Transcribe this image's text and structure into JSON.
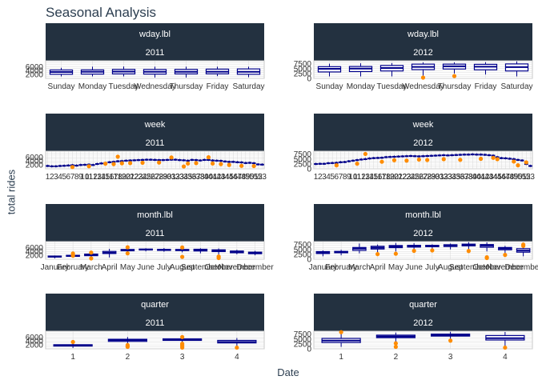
{
  "title": "Seasonal Analysis",
  "ylabel": "total rides",
  "xlabel": "Date",
  "colors": {
    "strip": "#233140",
    "box": "#00008b",
    "outlier": "#ff8c00",
    "grid": "#d9d9d9",
    "panel_border": "#c8c8c8"
  },
  "chart_data": [
    {
      "type": "boxplot",
      "feature": "wday.lbl",
      "year": "2011",
      "ylim": [
        0,
        9000
      ],
      "yticks": [
        2000,
        4000,
        6000
      ],
      "categories": [
        "Sunday",
        "Monday",
        "Tuesday",
        "Wednesday",
        "Thursday",
        "Friday",
        "Saturday"
      ],
      "boxes": [
        {
          "min": 1000,
          "q1": 2100,
          "median": 3250,
          "q3": 4300,
          "max": 5400
        },
        {
          "min": 1000,
          "q1": 2200,
          "median": 3400,
          "q3": 4350,
          "max": 6000
        },
        {
          "min": 1000,
          "q1": 2300,
          "median": 3500,
          "q3": 4600,
          "max": 6100
        },
        {
          "min": 450,
          "q1": 2200,
          "median": 3400,
          "q3": 4550,
          "max": 6000
        },
        {
          "min": 450,
          "q1": 2300,
          "median": 3400,
          "q3": 4600,
          "max": 6000
        },
        {
          "min": 1200,
          "q1": 2350,
          "median": 3450,
          "q3": 4750,
          "max": 6000
        },
        {
          "min": 600,
          "q1": 2100,
          "median": 3350,
          "q3": 4850,
          "max": 6000
        }
      ],
      "outliers": []
    },
    {
      "type": "boxplot",
      "feature": "wday.lbl",
      "year": "2012",
      "ylim": [
        0,
        9000
      ],
      "yticks": [
        0,
        2500,
        5000,
        7500
      ],
      "categories": [
        "Sunday",
        "Monday",
        "Tuesday",
        "Wednesday",
        "Thursday",
        "Friday",
        "Saturday"
      ],
      "boxes": [
        {
          "min": 1000,
          "q1": 3300,
          "median": 4900,
          "q3": 6000,
          "max": 7500
        },
        {
          "min": 1000,
          "q1": 3500,
          "median": 5000,
          "q3": 6100,
          "max": 7700
        },
        {
          "min": 1000,
          "q1": 3800,
          "median": 5300,
          "q3": 6600,
          "max": 7800
        },
        {
          "min": 1500,
          "q1": 4500,
          "median": 5900,
          "q3": 7300,
          "max": 8200
        },
        {
          "min": 2500,
          "q1": 4800,
          "median": 6200,
          "q3": 7300,
          "max": 8200
        },
        {
          "min": 2000,
          "q1": 4400,
          "median": 6000,
          "q3": 7200,
          "max": 8300
        },
        {
          "min": 1000,
          "q1": 3800,
          "median": 5800,
          "q3": 7400,
          "max": 8700
        }
      ],
      "outliers": [
        {
          "cat": 3,
          "y": 400
        },
        {
          "cat": 4,
          "y": 1200
        }
      ]
    },
    {
      "type": "boxplot",
      "feature": "week",
      "year": "2011",
      "ylim": [
        0,
        9000
      ],
      "yticks": [
        2000,
        4000,
        6000
      ],
      "categories": [
        "1",
        "2",
        "3",
        "4",
        "5",
        "6",
        "7",
        "8",
        "9",
        "10",
        "11",
        "12",
        "13",
        "14",
        "15",
        "16",
        "17",
        "18",
        "19",
        "20",
        "21",
        "22",
        "23",
        "24",
        "25",
        "26",
        "27",
        "28",
        "29",
        "30",
        "31",
        "32",
        "33",
        "34",
        "35",
        "36",
        "37",
        "38",
        "39",
        "40",
        "41",
        "42",
        "43",
        "44",
        "45",
        "46",
        "47",
        "48",
        "49",
        "50",
        "51",
        "52",
        "53"
      ],
      "medians": [
        1500,
        1300,
        1300,
        1500,
        1600,
        1750,
        1900,
        1700,
        2000,
        2100,
        2200,
        2000,
        2500,
        2800,
        3000,
        3400,
        3600,
        3900,
        4000,
        4200,
        4300,
        4400,
        4500,
        4600,
        4700,
        4700,
        4600,
        4500,
        4500,
        4600,
        4700,
        4700,
        4500,
        4400,
        4200,
        4600,
        4500,
        4300,
        4600,
        4600,
        4300,
        4200,
        4100,
        3800,
        3600,
        3600,
        3400,
        3300,
        3000,
        3100,
        2900,
        2300,
        2200
      ],
      "outliers": [
        {
          "cat": 6,
          "y": 900
        },
        {
          "cat": 10,
          "y": 1300
        },
        {
          "cat": 14,
          "y": 2600
        },
        {
          "cat": 16,
          "y": 2400
        },
        {
          "cat": 17,
          "y": 6200
        },
        {
          "cat": 18,
          "y": 2800
        },
        {
          "cat": 20,
          "y": 2900
        },
        {
          "cat": 23,
          "y": 3100
        },
        {
          "cat": 27,
          "y": 3200
        },
        {
          "cat": 30,
          "y": 5800
        },
        {
          "cat": 33,
          "y": 1200
        },
        {
          "cat": 34,
          "y": 2700
        },
        {
          "cat": 36,
          "y": 2900
        },
        {
          "cat": 39,
          "y": 5900
        },
        {
          "cat": 40,
          "y": 2700
        },
        {
          "cat": 42,
          "y": 2400
        },
        {
          "cat": 44,
          "y": 2000
        },
        {
          "cat": 47,
          "y": 1500
        },
        {
          "cat": 50,
          "y": 1400
        }
      ]
    },
    {
      "type": "boxplot",
      "feature": "week",
      "year": "2012",
      "ylim": [
        0,
        9000
      ],
      "yticks": [
        0,
        2500,
        5000,
        7500
      ],
      "categories": [
        "1",
        "2",
        "3",
        "4",
        "5",
        "6",
        "7",
        "8",
        "9",
        "10",
        "11",
        "12",
        "13",
        "14",
        "15",
        "16",
        "17",
        "18",
        "19",
        "20",
        "21",
        "22",
        "23",
        "24",
        "25",
        "26",
        "27",
        "28",
        "29",
        "30",
        "31",
        "32",
        "33",
        "34",
        "35",
        "36",
        "37",
        "38",
        "39",
        "40",
        "41",
        "42",
        "43",
        "44",
        "45",
        "46",
        "47",
        "48",
        "49",
        "50",
        "51",
        "52",
        "53"
      ],
      "medians": [
        2500,
        2600,
        2600,
        2900,
        3000,
        3100,
        3400,
        3500,
        3900,
        4200,
        4500,
        4800,
        5000,
        5300,
        5500,
        5600,
        5700,
        6000,
        6100,
        6200,
        6300,
        6400,
        6500,
        6600,
        6500,
        6400,
        6500,
        6600,
        6700,
        6800,
        6900,
        7000,
        6900,
        7000,
        7100,
        7200,
        7300,
        7300,
        7400,
        7300,
        7300,
        7200,
        7000,
        6800,
        6000,
        5500,
        5400,
        5200,
        5000,
        4600,
        4300,
        2500,
        1500
      ],
      "outliers": [
        {
          "cat": 5,
          "y": 1800
        },
        {
          "cat": 10,
          "y": 2600
        },
        {
          "cat": 12,
          "y": 7600
        },
        {
          "cat": 16,
          "y": 3600
        },
        {
          "cat": 19,
          "y": 4400
        },
        {
          "cat": 22,
          "y": 4200
        },
        {
          "cat": 25,
          "y": 4700
        },
        {
          "cat": 27,
          "y": 4500
        },
        {
          "cat": 31,
          "y": 4900
        },
        {
          "cat": 35,
          "y": 4600
        },
        {
          "cat": 40,
          "y": 5100
        },
        {
          "cat": 43,
          "y": 5600
        },
        {
          "cat": 44,
          "y": 4900
        },
        {
          "cat": 48,
          "y": 3700
        },
        {
          "cat": 49,
          "y": 1800
        },
        {
          "cat": 51,
          "y": 3300
        }
      ]
    },
    {
      "type": "boxplot",
      "feature": "month.lbl",
      "year": "2011",
      "ylim": [
        0,
        9000
      ],
      "yticks": [
        2000,
        4000,
        6000
      ],
      "categories": [
        "January",
        "February",
        "March",
        "April",
        "May",
        "June",
        "July",
        "August",
        "September",
        "October",
        "November",
        "December"
      ],
      "boxes": [
        {
          "min": 450,
          "q1": 1100,
          "median": 1300,
          "q3": 1600,
          "max": 1900
        },
        {
          "min": 1000,
          "q1": 1500,
          "median": 1700,
          "q3": 2000,
          "max": 2600
        },
        {
          "min": 600,
          "q1": 1800,
          "median": 2100,
          "q3": 2600,
          "max": 3300
        },
        {
          "min": 900,
          "q1": 2900,
          "median": 3300,
          "q3": 4000,
          "max": 5300
        },
        {
          "min": 3000,
          "q1": 4300,
          "median": 4700,
          "q3": 5000,
          "max": 5800
        },
        {
          "min": 4000,
          "q1": 4700,
          "median": 4900,
          "q3": 5200,
          "max": 5600
        },
        {
          "min": 3800,
          "q1": 4500,
          "median": 4800,
          "q3": 5000,
          "max": 5700
        },
        {
          "min": 3500,
          "q1": 4400,
          "median": 4700,
          "q3": 5000,
          "max": 5800
        },
        {
          "min": 3000,
          "q1": 4200,
          "median": 4700,
          "q3": 5100,
          "max": 5600
        },
        {
          "min": 2500,
          "q1": 3900,
          "median": 4400,
          "q3": 4800,
          "max": 5500
        },
        {
          "min": 2500,
          "q1": 3300,
          "median": 3700,
          "q3": 4200,
          "max": 4800
        },
        {
          "min": 2000,
          "q1": 2800,
          "median": 3200,
          "q3": 3600,
          "max": 4300
        }
      ],
      "outliers": [
        {
          "cat": 1,
          "y": 2900
        },
        {
          "cat": 1,
          "y": 1800
        },
        {
          "cat": 2,
          "y": 3400
        },
        {
          "cat": 2,
          "y": 400
        },
        {
          "cat": 4,
          "y": 6100
        },
        {
          "cat": 4,
          "y": 3000
        },
        {
          "cat": 7,
          "y": 6000
        },
        {
          "cat": 7,
          "y": 1200
        },
        {
          "cat": 9,
          "y": 1400
        },
        {
          "cat": 9,
          "y": 600
        }
      ]
    },
    {
      "type": "boxplot",
      "feature": "month.lbl",
      "year": "2012",
      "ylim": [
        0,
        9000
      ],
      "yticks": [
        0,
        2500,
        5000,
        7500
      ],
      "categories": [
        "January",
        "February",
        "March",
        "April",
        "May",
        "June",
        "July",
        "August",
        "September",
        "October",
        "November",
        "December"
      ],
      "boxes": [
        {
          "min": 1500,
          "q1": 2900,
          "median": 3300,
          "q3": 3900,
          "max": 4500
        },
        {
          "min": 2000,
          "q1": 3300,
          "median": 3700,
          "q3": 4000,
          "max": 4800
        },
        {
          "min": 3000,
          "q1": 4500,
          "median": 5400,
          "q3": 6000,
          "max": 8000
        },
        {
          "min": 3400,
          "q1": 5200,
          "median": 5900,
          "q3": 6600,
          "max": 7500
        },
        {
          "min": 4000,
          "q1": 5900,
          "median": 6400,
          "q3": 7000,
          "max": 8300
        },
        {
          "min": 4500,
          "q1": 6200,
          "median": 6700,
          "q3": 7100,
          "max": 8200
        },
        {
          "min": 4500,
          "q1": 6400,
          "median": 6800,
          "q3": 7100,
          "max": 7600
        },
        {
          "min": 5000,
          "q1": 6500,
          "median": 7000,
          "q3": 7400,
          "max": 8000
        },
        {
          "min": 5000,
          "q1": 6800,
          "median": 7300,
          "q3": 7700,
          "max": 8700
        },
        {
          "min": 4000,
          "q1": 6100,
          "median": 6900,
          "q3": 7500,
          "max": 8600
        },
        {
          "min": 2500,
          "q1": 4800,
          "median": 5500,
          "q3": 6000,
          "max": 6800
        },
        {
          "min": 1500,
          "q1": 3600,
          "median": 4400,
          "q3": 5400,
          "max": 6600
        }
      ],
      "outliers": [
        {
          "cat": 3,
          "y": 2600
        },
        {
          "cat": 4,
          "y": 2800
        },
        {
          "cat": 5,
          "y": 4300
        },
        {
          "cat": 6,
          "y": 4500
        },
        {
          "cat": 8,
          "y": 4200
        },
        {
          "cat": 9,
          "y": 1000
        },
        {
          "cat": 9,
          "y": 600
        },
        {
          "cat": 10,
          "y": 2200
        },
        {
          "cat": 11,
          "y": 7500
        },
        {
          "cat": 11,
          "y": 6800
        }
      ]
    },
    {
      "type": "boxplot",
      "feature": "quarter",
      "year": "2011",
      "ylim": [
        0,
        9000
      ],
      "yticks": [
        2000,
        4000,
        6000
      ],
      "categories": [
        "1",
        "2",
        "3",
        "4"
      ],
      "boxes": [
        {
          "min": 450,
          "q1": 1400,
          "median": 1700,
          "q3": 2100,
          "max": 3000
        },
        {
          "min": 1800,
          "q1": 3800,
          "median": 4400,
          "q3": 4900,
          "max": 6000
        },
        {
          "min": 3000,
          "q1": 4300,
          "median": 4700,
          "q3": 5100,
          "max": 6000
        },
        {
          "min": 700,
          "q1": 3000,
          "median": 3500,
          "q3": 4300,
          "max": 5500
        }
      ],
      "outliers": [
        {
          "cat": 0,
          "y": 3500
        },
        {
          "cat": 1,
          "y": 1900
        },
        {
          "cat": 1,
          "y": 1300
        },
        {
          "cat": 1,
          "y": 1000
        },
        {
          "cat": 2,
          "y": 2600
        },
        {
          "cat": 2,
          "y": 2000
        },
        {
          "cat": 2,
          "y": 1300
        },
        {
          "cat": 2,
          "y": 600
        },
        {
          "cat": 2,
          "y": 6000
        },
        {
          "cat": 3,
          "y": 600
        }
      ]
    },
    {
      "type": "boxplot",
      "feature": "quarter",
      "year": "2012",
      "ylim": [
        0,
        9000
      ],
      "yticks": [
        0,
        2500,
        5000,
        7500
      ],
      "categories": [
        "1",
        "2",
        "3",
        "4"
      ],
      "boxes": [
        {
          "min": 1000,
          "q1": 3200,
          "median": 4200,
          "q3": 5300,
          "max": 8000
        },
        {
          "min": 3000,
          "q1": 5700,
          "median": 6300,
          "q3": 7000,
          "max": 8300
        },
        {
          "min": 4500,
          "q1": 6500,
          "median": 7000,
          "q3": 7500,
          "max": 8700
        },
        {
          "min": 1200,
          "q1": 4500,
          "median": 5400,
          "q3": 6800,
          "max": 8600
        }
      ],
      "outliers": [
        {
          "cat": 0,
          "y": 8500
        },
        {
          "cat": 1,
          "y": 2800
        },
        {
          "cat": 1,
          "y": 1000
        },
        {
          "cat": 2,
          "y": 4200
        },
        {
          "cat": 3,
          "y": 600
        }
      ]
    }
  ]
}
